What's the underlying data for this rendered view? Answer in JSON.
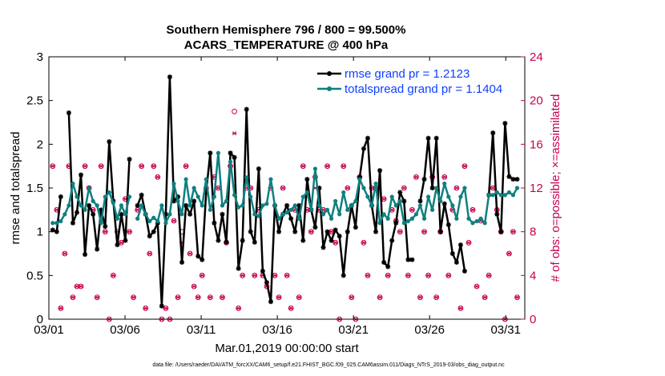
{
  "chart_data": {
    "type": "line",
    "title_line1": "Southern Hemisphere 796 / 800 = 99.500%",
    "title_line2": "ACARS_TEMPERATURE @ 400 hPa",
    "xlabel": "Mar.01,2019 00:00:00 start",
    "ylabel": "rmse and totalspread",
    "ylabel_right": "# of obs: o=possible; ×=assimilated",
    "footer": "data file: /Users/raeder/DAI/ATM_forcXX/CAM6_setup/f.e21.FHIST_BGC.f09_025.CAM6assim.011/Diags_NTrS_2019-03/obs_diag_output.nc",
    "xlim": [
      0,
      31.25
    ],
    "ylim": [
      0,
      3
    ],
    "ylim_right": [
      0,
      24
    ],
    "x_tick_labels": [
      "03/01",
      "03/06",
      "03/11",
      "03/16",
      "03/21",
      "03/26",
      "03/31"
    ],
    "x_tick_values": [
      0,
      5,
      10,
      15,
      20,
      25,
      30
    ],
    "y_tick_labels": [
      "0",
      "0.5",
      "1",
      "1.5",
      "2",
      "2.5",
      "3"
    ],
    "y_tick_values": [
      0,
      0.5,
      1,
      1.5,
      2,
      2.5,
      3
    ],
    "y_right_tick_labels": [
      "0",
      "4",
      "8",
      "12",
      "16",
      "20",
      "24"
    ],
    "y_right_tick_values": [
      0,
      4,
      8,
      12,
      16,
      20,
      24
    ],
    "colors": {
      "rmse": "#000000",
      "spread": "#0f8080",
      "obs": "#c8004e",
      "legend_text": "#1040ff"
    },
    "series": [
      {
        "name": "rmse grand pr = 1.2123",
        "color": "#000000",
        "values": [
          1.02,
          1.0,
          1.4,
          null,
          2.36,
          1.1,
          1.22,
          1.65,
          0.74,
          1.3,
          1.2,
          0.8,
          1.25,
          1.06,
          2.03,
          1.35,
          0.85,
          1.2,
          0.9,
          1.83,
          null,
          1.3,
          1.42,
          1.2,
          0.95,
          1.0,
          1.1,
          0.15,
          1.2,
          2.77,
          1.35,
          1.4,
          0.65,
          1.3,
          1.2,
          1.35,
          0.72,
          0.68,
          1.45,
          1.9,
          1.1,
          0.9,
          1.2,
          0.88,
          1.9,
          1.85,
          0.58,
          0.9,
          2.4,
          1.0,
          0.88,
          1.72,
          0.55,
          0.42,
          0.2,
          1.3,
          1.0,
          1.2,
          1.3,
          1.15,
          1.0,
          1.3,
          0.9,
          1.6,
          1.25,
          1.05,
          1.5,
          0.82,
          1.0,
          0.9,
          1.02,
          0.95,
          0.5,
          1.0,
          1.3,
          1.05,
          1.62,
          1.95,
          2.07,
          1.3,
          1.0,
          1.7,
          0.65,
          0.6,
          0.9,
          1.1,
          1.45,
          1.35,
          0.68,
          0.68,
          null,
          1.35,
          1.6,
          2.07,
          1.5,
          2.07,
          1.0,
          1.32,
          1.08,
          0.75,
          0.65,
          0.85,
          0.55,
          null,
          null,
          null,
          null,
          null,
          1.42,
          2.13,
          1.2,
          1.0,
          2.24,
          1.63,
          1.6,
          1.6
        ]
      },
      {
        "name": "totalspread grand pr = 1.1404",
        "color": "#0f8080",
        "values": [
          1.1,
          1.1,
          1.12,
          1.2,
          1.3,
          1.55,
          1.4,
          1.3,
          1.25,
          1.5,
          1.35,
          1.3,
          1.1,
          1.4,
          1.45,
          1.33,
          1.15,
          1.3,
          1.2,
          1.4,
          null,
          1.15,
          1.3,
          1.2,
          1.12,
          1.16,
          1.12,
          1.3,
          1.1,
          1.2,
          1.55,
          1.35,
          1.2,
          1.6,
          1.3,
          1.5,
          1.4,
          1.3,
          1.6,
          1.25,
          1.4,
          1.9,
          1.3,
          1.35,
          1.8,
          1.42,
          1.28,
          1.3,
          1.62,
          1.4,
          1.2,
          1.18,
          1.3,
          1.32,
          1.6,
          1.3,
          1.15,
          1.2,
          1.22,
          1.25,
          1.3,
          1.15,
          1.4,
          1.45,
          1.25,
          1.72,
          1.3,
          1.2,
          1.25,
          1.15,
          1.35,
          1.2,
          1.45,
          1.25,
          1.3,
          1.35,
          1.6,
          1.5,
          1.4,
          1.3,
          1.55,
          1.1,
          1.2,
          1.15,
          1.4,
          1.3,
          1.35,
          1.1,
          1.12,
          1.15,
          1.2,
          1.3,
          1.15,
          1.4,
          1.25,
          1.5,
          1.35,
          1.55,
          1.4,
          1.3,
          1.15,
          1.4,
          1.5,
          1.15,
          1.1,
          1.12,
          1.15,
          1.1,
          1.42,
          1.42,
          1.45,
          1.42,
          1.42,
          1.45,
          1.42,
          1.5
        ]
      }
    ],
    "obs_possible": [
      14,
      10,
      1,
      6,
      14,
      2,
      3,
      3,
      14,
      12,
      10,
      2,
      14,
      8,
      0,
      4,
      8,
      7,
      11,
      8,
      2,
      10,
      14,
      1,
      6,
      14,
      13,
      0,
      1,
      0,
      9,
      2,
      8,
      14,
      6,
      3,
      2,
      4,
      12,
      2,
      13,
      12,
      2,
      7,
      14,
      19,
      1,
      4,
      12,
      12,
      4,
      10,
      4,
      3,
      12,
      4,
      2,
      12,
      4,
      1,
      10,
      2,
      14,
      10,
      8,
      13,
      10,
      10,
      14,
      8,
      7,
      0,
      14,
      12,
      2,
      0,
      13,
      7,
      4,
      12,
      12,
      2,
      11,
      4,
      10,
      9,
      8,
      12,
      4,
      10,
      13,
      2,
      8,
      4,
      13,
      2,
      8,
      13,
      4,
      10,
      12,
      1,
      14,
      7,
      10,
      3,
      9,
      2,
      4,
      12,
      10,
      8,
      0,
      6,
      8,
      2
    ],
    "obs_assimilated": [
      14,
      10,
      1,
      6,
      14,
      2,
      3,
      3,
      14,
      12,
      10,
      2,
      14,
      8,
      0,
      4,
      8,
      7,
      11,
      8,
      2,
      10,
      14,
      1,
      6,
      14,
      13,
      0,
      1,
      0,
      9,
      2,
      7,
      14,
      6,
      3,
      2,
      4,
      12,
      2,
      13,
      12,
      2,
      7,
      14,
      17,
      1,
      4,
      12,
      12,
      4,
      10,
      4,
      3,
      12,
      4,
      2,
      12,
      4,
      1,
      10,
      2,
      14,
      10,
      8,
      12,
      10,
      10,
      14,
      8,
      7,
      0,
      14,
      12,
      2,
      0,
      13,
      7,
      4,
      12,
      12,
      2,
      11,
      4,
      10,
      9,
      8,
      12,
      4,
      10,
      13,
      2,
      8,
      4,
      13,
      2,
      8,
      13,
      4,
      10,
      12,
      1,
      14,
      7,
      10,
      3,
      9,
      2,
      4,
      12,
      10,
      8,
      0,
      6,
      8,
      2
    ]
  }
}
